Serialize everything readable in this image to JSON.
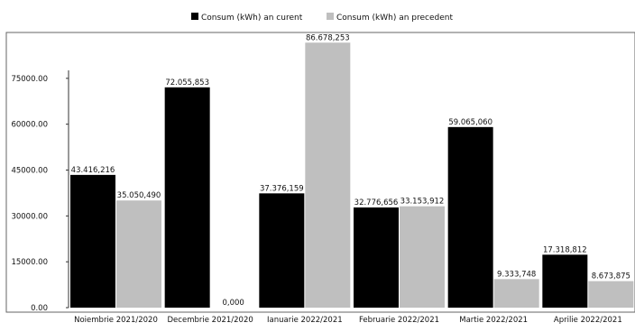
{
  "colors": {
    "current": "#000000",
    "previous": "#bfbfbf",
    "frame": "#666666"
  },
  "legend": {
    "position": "top-center"
  },
  "chart_data": {
    "type": "bar",
    "title": "",
    "xlabel": "",
    "ylabel": "",
    "ylim": [
      0,
      90000
    ],
    "yticks": [
      0,
      15000,
      30000,
      45000,
      60000,
      75000
    ],
    "ytick_labels": [
      "0.00",
      "15000.00",
      "30000.00",
      "45000.00",
      "60000.00",
      "75000.00"
    ],
    "grid": false,
    "categories": [
      "Noiembrie 2021/2020",
      "Decembrie 2021/2020",
      "Ianuarie 2022/2021",
      "Februarie 2022/2021",
      "Martie 2022/2021",
      "Aprilie 2022/2021"
    ],
    "series": [
      {
        "name": "Consum (kWh) an curent",
        "values": [
          43416.216,
          72055.853,
          37376.159,
          32776.656,
          59065.06,
          17318.812
        ],
        "labels": [
          "43.416,216",
          "72.055,853",
          "37.376,159",
          "32.776,656",
          "59.065,060",
          "17.318,812"
        ]
      },
      {
        "name": "Consum (kWh) an precedent",
        "values": [
          35050.49,
          0,
          86678.253,
          33153.912,
          9333.748,
          8673.875
        ],
        "labels": [
          "35.050,490",
          "0,000",
          "86.678,253",
          "33.153,912",
          "9.333,748",
          "8.673,875"
        ]
      }
    ]
  }
}
